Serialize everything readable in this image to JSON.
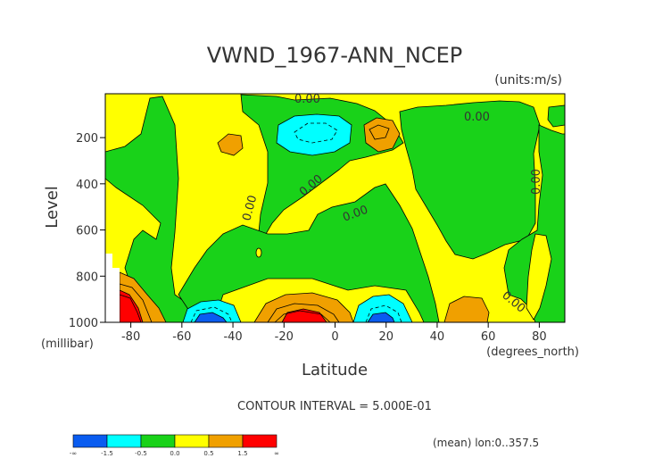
{
  "chart_data": {
    "type": "heatmap",
    "title": "VWND_1967-ANN_NCEP",
    "units_label": "(units:m/s)",
    "xlabel": "Latitude",
    "ylabel": "Level",
    "x_unit_label": "(degrees_north)",
    "y_unit_label": "(millibar)",
    "xlim": [
      -90,
      90
    ],
    "ylim": [
      1000,
      10
    ],
    "x_ticks": [
      "-80",
      "-60",
      "-40",
      "-20",
      "0",
      "20",
      "40",
      "60",
      "80"
    ],
    "x_tick_values": [
      -80,
      -60,
      -40,
      -20,
      0,
      20,
      40,
      60,
      80
    ],
    "y_ticks": [
      "200",
      "400",
      "600",
      "800",
      "1000"
    ],
    "y_tick_values": [
      200,
      400,
      600,
      800,
      1000
    ],
    "contour_labels": [
      "0.00",
      "0.00",
      "0.00",
      "0.00",
      "0.00",
      "0.00",
      "0.00"
    ],
    "contour_interval_text": "CONTOUR INTERVAL = 5.000E-01",
    "mean_text": "(mean) lon:0..357.5",
    "legend": {
      "labels": [
        "-∞",
        "-1.5",
        "-0.5",
        "0.0",
        "0.5",
        "1.5",
        "∞"
      ],
      "colors": [
        "#0a5cf0",
        "#00ffff",
        "#19d219",
        "#ffff00",
        "#f0a000",
        "#ff0000"
      ]
    }
  }
}
